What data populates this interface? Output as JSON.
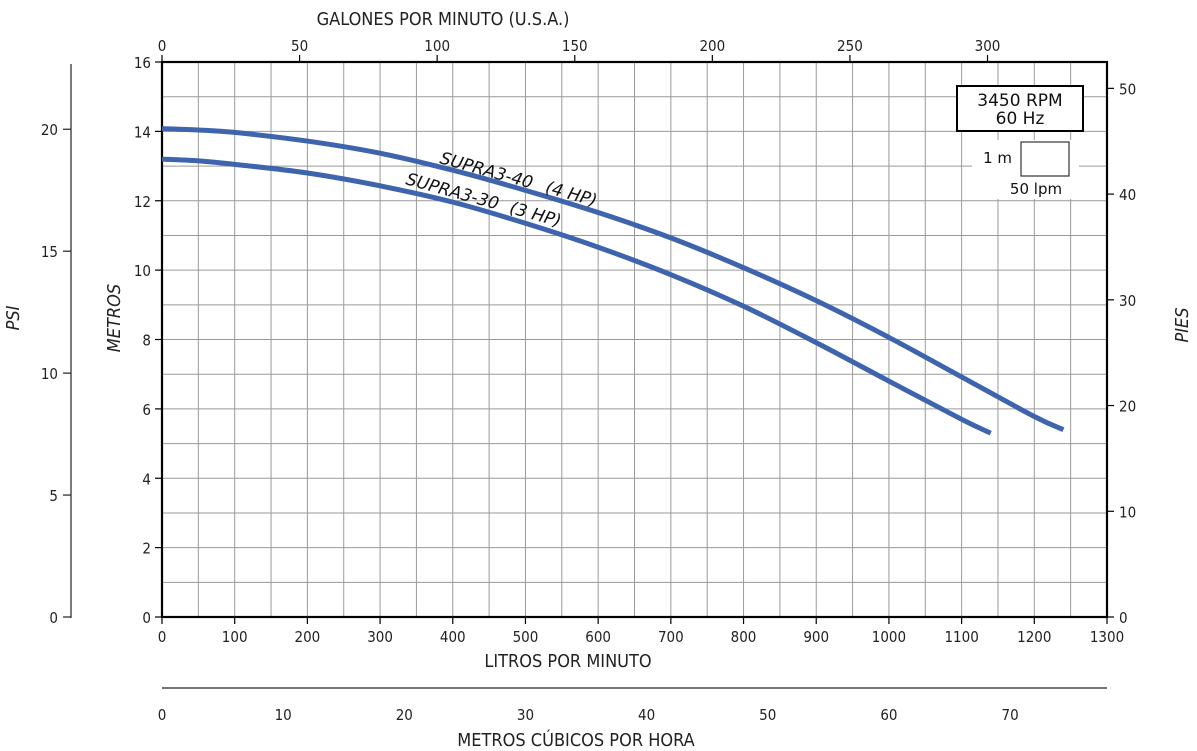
{
  "chart_data": {
    "type": "line",
    "x_bottom": {
      "label": "LITROS POR MINUTO",
      "range": [
        0,
        1300
      ],
      "ticks": [
        "0",
        "100",
        "200",
        "300",
        "400",
        "500",
        "600",
        "700",
        "800",
        "900",
        "1000",
        "1100",
        "1200",
        "1300"
      ]
    },
    "x_top": {
      "label": "GALONES POR MINUTO (U.S.A.)",
      "ticks": [
        "0",
        "50",
        "100",
        "150",
        "200",
        "250",
        "300"
      ]
    },
    "x_extra": {
      "label": "METROS CÚBICOS POR HORA",
      "ticks": [
        "0",
        "10",
        "20",
        "30",
        "40",
        "50",
        "60",
        "70"
      ]
    },
    "y_left": {
      "label": "METROS",
      "range": [
        0,
        16
      ],
      "ticks": [
        "0",
        "2",
        "4",
        "6",
        "8",
        "10",
        "12",
        "14",
        "16"
      ]
    },
    "y_psi": {
      "label": "PSI",
      "ticks": [
        "0",
        "5",
        "10",
        "15",
        "20"
      ]
    },
    "y_right": {
      "label": "PIES",
      "ticks": [
        "0",
        "10",
        "20",
        "30",
        "40",
        "50"
      ]
    },
    "series": [
      {
        "name": "SUPRA3-40",
        "hp_label": "(4 HP)",
        "color": "#3f64ae",
        "x": [
          0,
          50,
          100,
          200,
          300,
          400,
          500,
          600,
          700,
          800,
          900,
          1000,
          1100,
          1200,
          1240
        ],
        "y": [
          14.08,
          14.04,
          13.97,
          13.72,
          13.37,
          12.88,
          12.3,
          11.66,
          10.93,
          10.07,
          9.12,
          8.06,
          6.92,
          5.78,
          5.4
        ]
      },
      {
        "name": "SUPRA3-30",
        "hp_label": "(3 HP)",
        "color": "#3f64ae",
        "x": [
          0,
          50,
          100,
          200,
          300,
          400,
          500,
          600,
          700,
          800,
          900,
          1000,
          1100,
          1140
        ],
        "y": [
          13.2,
          13.15,
          13.05,
          12.8,
          12.43,
          11.96,
          11.35,
          10.66,
          9.87,
          8.96,
          7.91,
          6.8,
          5.7,
          5.3
        ]
      }
    ],
    "info_box": {
      "rpm": "3450 RPM",
      "hz": "60 Hz"
    },
    "grid_scale": {
      "vertical": "1 m",
      "horizontal": "50 lpm"
    },
    "grid": true
  }
}
